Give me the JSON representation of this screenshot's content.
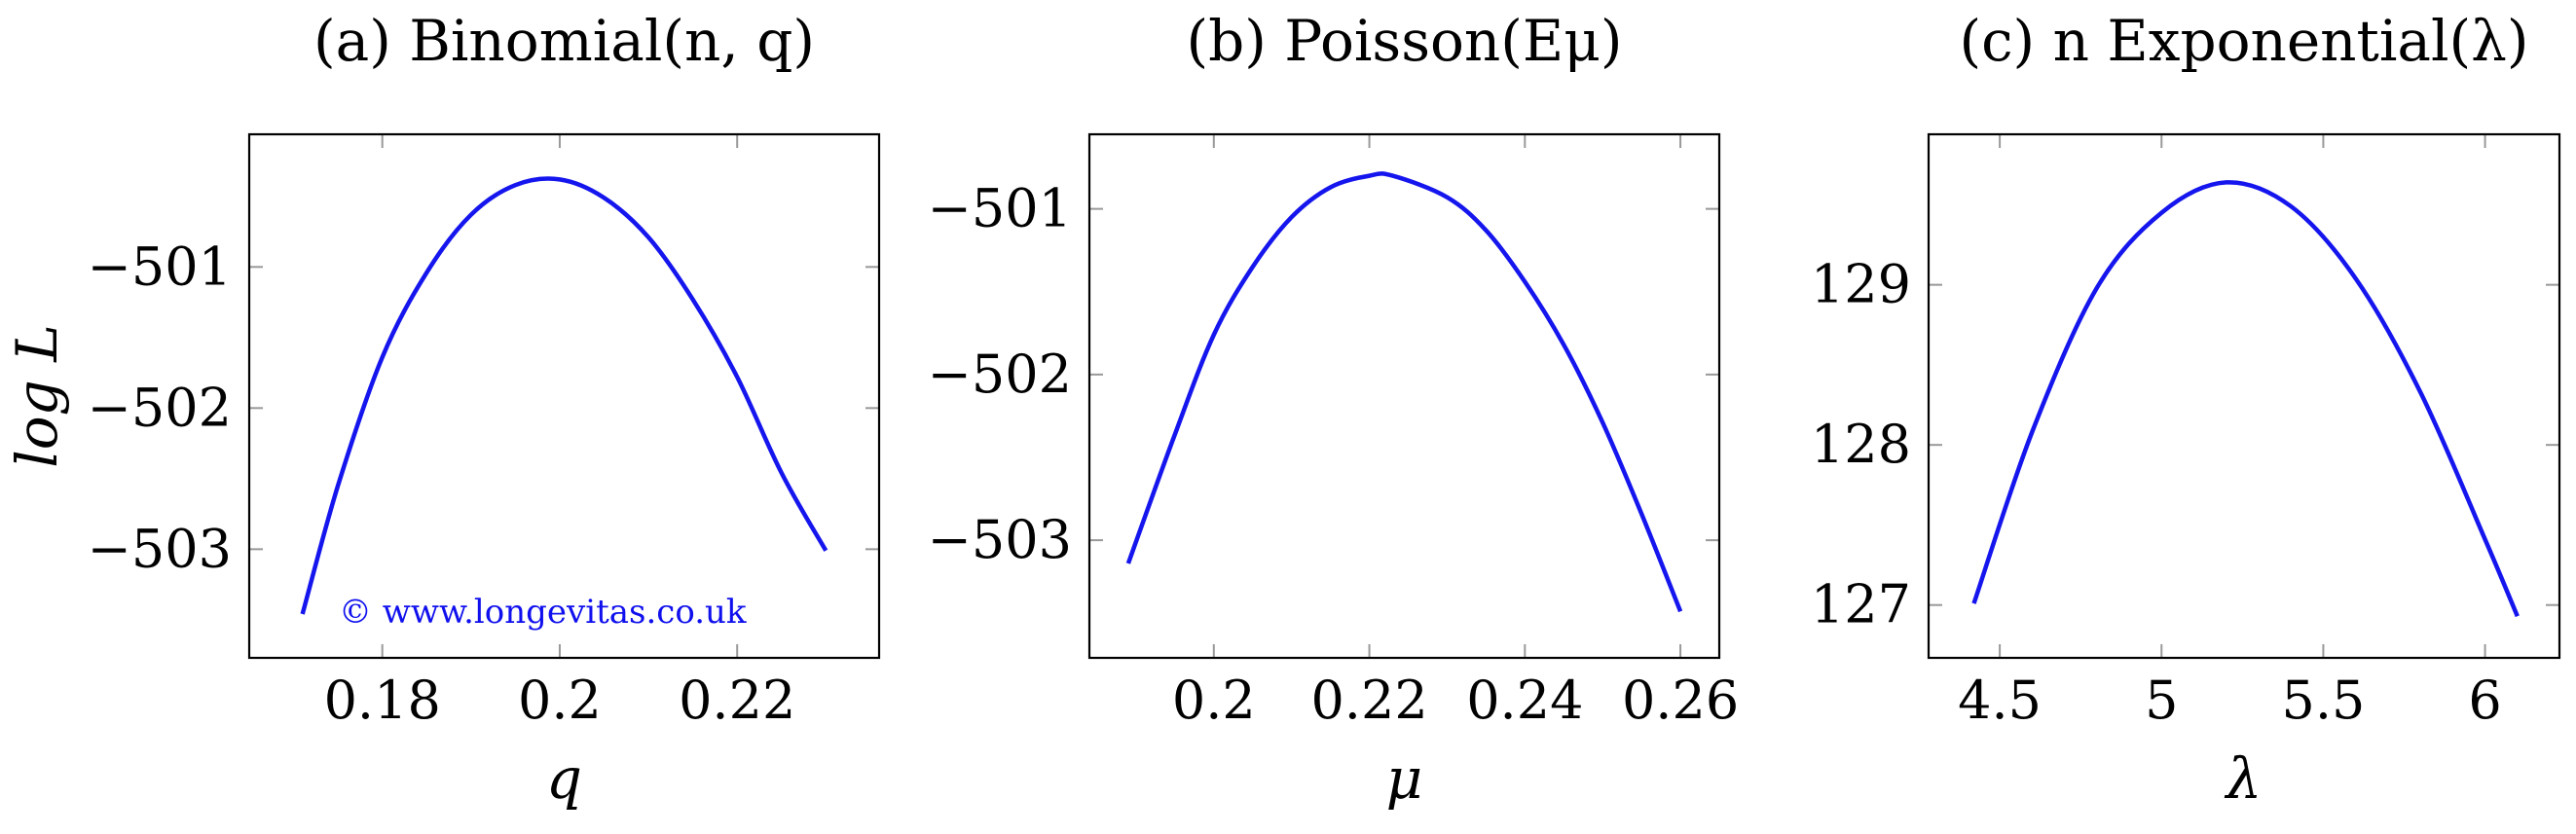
{
  "watermark": "© www.longevitas.co.uk",
  "colors": {
    "curve": "#1515ee",
    "frame": "#000000",
    "tick": "#999999",
    "watermark": "#1010ee"
  },
  "chart_data": [
    {
      "type": "line",
      "title": "(a) Binomial(n, q)",
      "xlabel": "q",
      "ylabel": "log L",
      "xlim": [
        0.165,
        0.236
      ],
      "ylim": [
        -503.77,
        -500.06
      ],
      "xticks": [
        0.18,
        0.2,
        0.22
      ],
      "xtick_labels": [
        "0.18",
        "0.2",
        "0.22"
      ],
      "yticks": [
        -501,
        -502,
        -503
      ],
      "ytick_labels": [
        "−501",
        "−502",
        "−503"
      ],
      "grid": false,
      "series": [
        {
          "x": [
            0.171,
            0.175,
            0.18,
            0.185,
            0.19,
            0.195,
            0.2,
            0.205,
            0.21,
            0.215,
            0.22,
            0.225,
            0.23
          ],
          "y": [
            -503.46,
            -502.55,
            -501.64,
            -501.04,
            -500.63,
            -500.42,
            -500.38,
            -500.51,
            -500.79,
            -501.23,
            -501.78,
            -502.46,
            -503.01
          ]
        }
      ]
    },
    {
      "type": "line",
      "title": "(b) Poisson(Eμ)",
      "xlabel": "μ",
      "ylabel": "",
      "xlim": [
        0.184,
        0.265
      ],
      "ylim": [
        -503.71,
        -500.55
      ],
      "xticks": [
        0.2,
        0.22,
        0.24,
        0.26
      ],
      "xtick_labels": [
        "0.2",
        "0.22",
        "0.24",
        "0.26"
      ],
      "yticks": [
        -501,
        -502,
        -503
      ],
      "ytick_labels": [
        "−501",
        "−502",
        "−503"
      ],
      "grid": false,
      "series": [
        {
          "x": [
            0.189,
            0.195,
            0.2,
            0.205,
            0.21,
            0.215,
            0.22,
            0.223,
            0.23,
            0.235,
            0.24,
            0.245,
            0.25,
            0.255,
            0.26
          ],
          "y": [
            -503.14,
            -502.36,
            -501.76,
            -501.35,
            -501.05,
            -500.87,
            -500.8,
            -500.8,
            -500.93,
            -501.13,
            -501.44,
            -501.82,
            -502.29,
            -502.84,
            -503.43
          ]
        }
      ]
    },
    {
      "type": "line",
      "title": "(c) n Exponential(λ)",
      "xlabel": "λ",
      "ylabel": "",
      "xlim": [
        4.28,
        6.23
      ],
      "ylim": [
        126.67,
        129.94
      ],
      "xticks": [
        4.5,
        5,
        5.5,
        6
      ],
      "xtick_labels": [
        "4.5",
        "5",
        "5.5",
        "6"
      ],
      "yticks": [
        129,
        128,
        127
      ],
      "ytick_labels": [
        "129",
        "128",
        "127"
      ],
      "grid": false,
      "series": [
        {
          "x": [
            4.42,
            4.6,
            4.8,
            5.0,
            5.2,
            5.4,
            5.6,
            5.8,
            6.0,
            6.1
          ],
          "y": [
            127.01,
            128.08,
            128.98,
            129.45,
            129.64,
            129.49,
            129.04,
            128.33,
            127.41,
            126.93
          ]
        }
      ]
    }
  ]
}
